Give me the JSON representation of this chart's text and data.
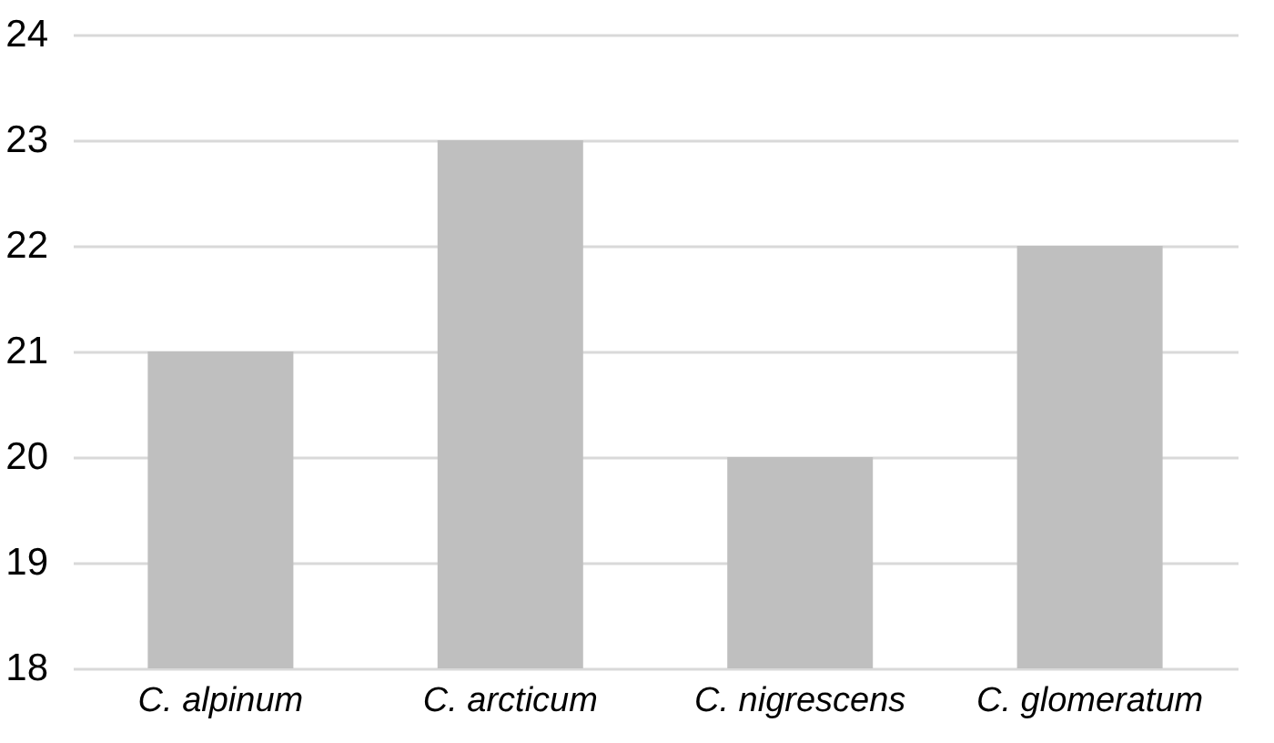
{
  "chart_data": {
    "type": "bar",
    "categories": [
      "C. alpinum",
      "C. arcticum",
      "C. nigrescens",
      "C. glomeratum"
    ],
    "values": [
      21,
      23,
      20,
      22
    ],
    "color": "#bfbfbf",
    "ylim": [
      18,
      24
    ],
    "yticks": [
      18,
      19,
      20,
      21,
      22,
      23,
      24
    ],
    "grid": "y"
  }
}
